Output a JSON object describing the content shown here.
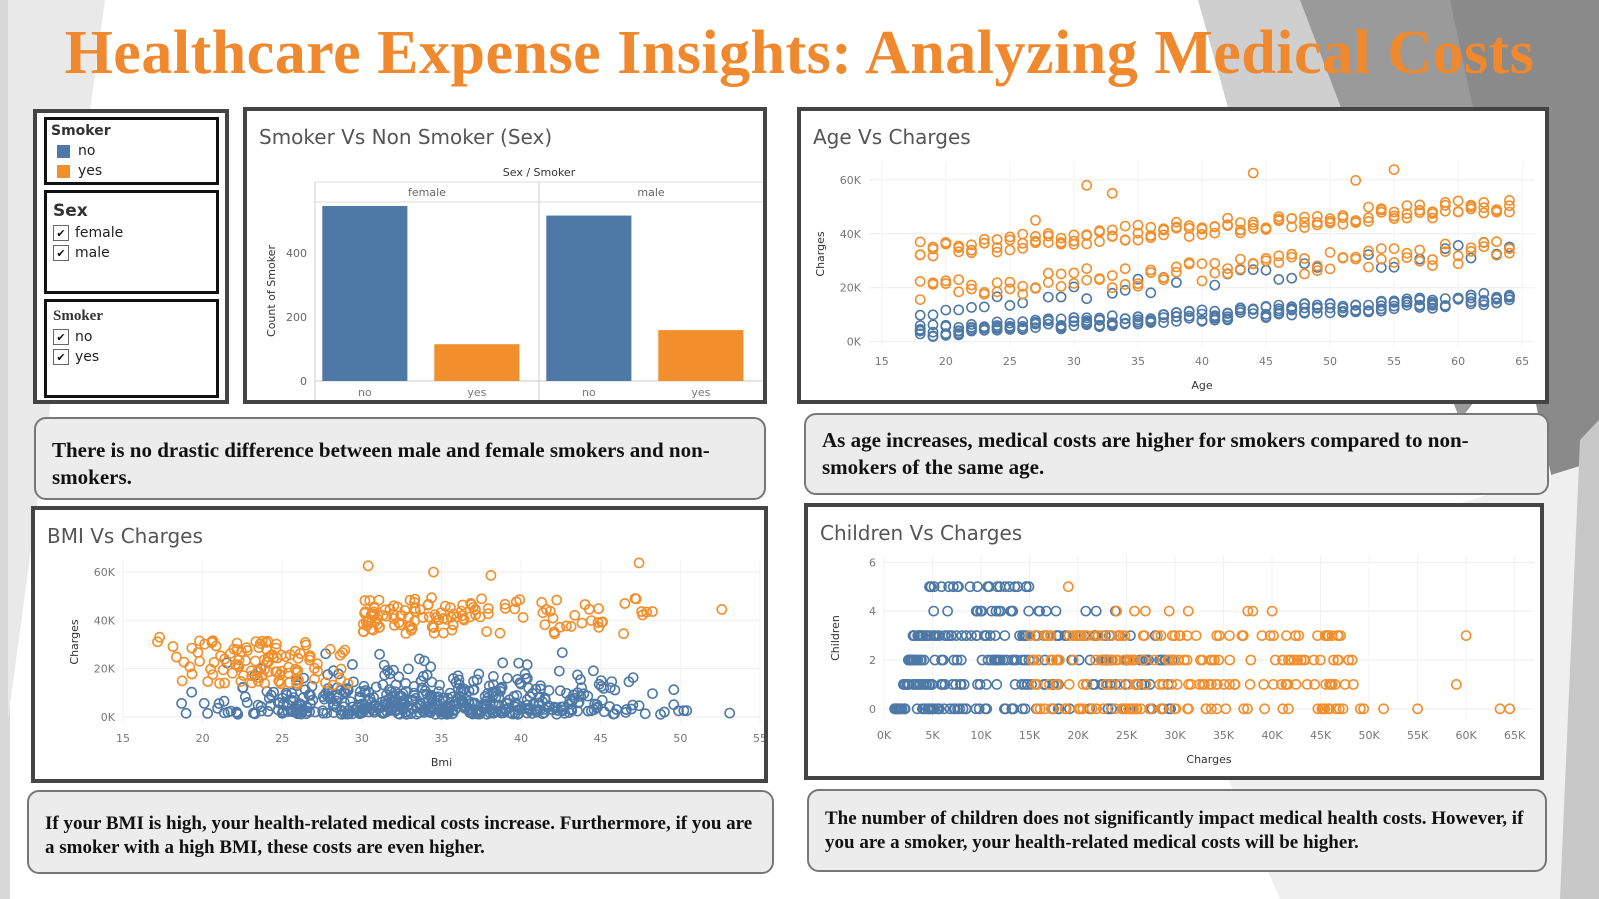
{
  "title": "Healthcare Expense Insights: Analyzing Medical Costs",
  "colors": {
    "no": "#4e79a7",
    "yes": "#f28e2b",
    "title": "#f0882d"
  },
  "legend": {
    "title": "Smoker",
    "items": [
      "no",
      "yes"
    ]
  },
  "filters": {
    "sex": {
      "title": "Sex",
      "options": [
        "female",
        "male"
      ]
    },
    "smoker": {
      "title": "Smoker",
      "options": [
        "no",
        "yes"
      ]
    }
  },
  "notes": {
    "sex": "There is no drastic difference between male and female smokers and non-smokers.",
    "age": "As age increases, medical costs are higher for smokers compared to non-smokers of the same age.",
    "bmi": "If your BMI is high, your health-related medical costs increase. Furthermore, if you are a smoker with a high BMI, these costs are even higher.",
    "children": "The number of children does not significantly impact medical health costs. However, if you are a smoker, your health-related medical costs will be higher."
  },
  "chart_data": [
    {
      "id": "sex",
      "type": "bar",
      "title": "Smoker Vs Non Smoker (Sex)",
      "header": "Sex / Smoker",
      "groups": [
        "female",
        "male"
      ],
      "categories": [
        "no",
        "yes"
      ],
      "series": [
        {
          "group": "female",
          "values": [
            547,
            115
          ]
        },
        {
          "group": "male",
          "values": [
            517,
            159
          ]
        }
      ],
      "ylabel": "Count of Smoker",
      "yticks": [
        0,
        200,
        400
      ],
      "ylim": [
        0,
        600
      ]
    },
    {
      "id": "age",
      "type": "scatter",
      "title": "Age Vs Charges",
      "xlabel": "Age",
      "ylabel": "Charges",
      "xticks": [
        15,
        20,
        25,
        30,
        35,
        40,
        45,
        50,
        55,
        60,
        65
      ],
      "yticks": [
        0,
        20000,
        40000,
        60000
      ],
      "ytick_labels": [
        "0K",
        "20K",
        "40K",
        "60K"
      ],
      "xlim": [
        14,
        66
      ],
      "ylim": [
        -2000,
        67000
      ],
      "x_range": [
        18,
        64
      ],
      "nonsmoker_base": [
        1500,
        14000
      ],
      "nonsmoker_upper": [
        15000,
        38000
      ],
      "smoker_low": [
        15000,
        30000
      ],
      "smoker_high": [
        33000,
        50000
      ],
      "outliers": [
        [
          44,
          62500
        ],
        [
          55,
          63800
        ],
        [
          52,
          59800
        ],
        [
          31,
          58000
        ],
        [
          33,
          55000
        ],
        [
          27,
          45000
        ]
      ]
    },
    {
      "id": "bmi",
      "type": "scatter",
      "title": "BMI Vs Charges",
      "xlabel": "Bmi",
      "ylabel": "Charges",
      "xticks": [
        15,
        20,
        25,
        30,
        35,
        40,
        45,
        50,
        55
      ],
      "yticks": [
        0,
        20000,
        40000,
        60000
      ],
      "ytick_labels": [
        "0K",
        "20K",
        "40K",
        "60K"
      ],
      "xlim": [
        15,
        55
      ],
      "ylim": [
        -3000,
        65000
      ],
      "nonsmoker_x": [
        16,
        53.1
      ],
      "nonsmoker_y": [
        1000,
        30000
      ],
      "smoker_low_x": [
        17,
        30
      ],
      "smoker_low_y": [
        13000,
        32000
      ],
      "smoker_high_x": [
        30,
        50
      ],
      "smoker_high_y": [
        34000,
        50000
      ],
      "outliers": [
        [
          47.4,
          63800
        ],
        [
          30.4,
          62600
        ],
        [
          34.5,
          60000
        ],
        [
          38.1,
          58600
        ],
        [
          52.6,
          44500
        ],
        [
          17.3,
          33000
        ]
      ]
    },
    {
      "id": "children",
      "type": "scatter",
      "title": "Children Vs Charges",
      "xlabel": "Charges",
      "ylabel": "Children",
      "xticks": [
        0,
        5000,
        10000,
        15000,
        20000,
        25000,
        30000,
        35000,
        40000,
        45000,
        50000,
        55000,
        60000,
        65000
      ],
      "xtick_labels": [
        "0K",
        "5K",
        "10K",
        "15K",
        "20K",
        "25K",
        "30K",
        "35K",
        "40K",
        "45K",
        "50K",
        "55K",
        "60K",
        "65K"
      ],
      "yticks": [
        0,
        2,
        4,
        6
      ],
      "xlim": [
        0,
        67000
      ],
      "ylim": [
        -0.5,
        6.3
      ],
      "rows": [
        {
          "children": 0,
          "nonsmoker": [
            1100,
            30000
          ],
          "smoker": [
            15000,
            50000
          ]
        },
        {
          "children": 1,
          "nonsmoker": [
            2000,
            30000
          ],
          "smoker": [
            15000,
            49000
          ]
        },
        {
          "children": 2,
          "nonsmoker": [
            2500,
            30000
          ],
          "smoker": [
            15000,
            49000
          ]
        },
        {
          "children": 3,
          "nonsmoker": [
            3000,
            28000
          ],
          "smoker": [
            15000,
            48000
          ]
        },
        {
          "children": 4,
          "nonsmoker": [
            4500,
            25000
          ],
          "smoker": [
            17000,
            40000
          ]
        },
        {
          "children": 5,
          "nonsmoker": [
            4500,
            15000
          ],
          "smoker": [
            19000,
            19000
          ]
        }
      ],
      "outliers": [
        [
          60000,
          3
        ],
        [
          63500,
          0
        ],
        [
          64500,
          0
        ],
        [
          55000,
          0
        ],
        [
          51500,
          0
        ],
        [
          59000,
          1
        ],
        [
          40000,
          4
        ],
        [
          37500,
          4
        ]
      ]
    }
  ]
}
